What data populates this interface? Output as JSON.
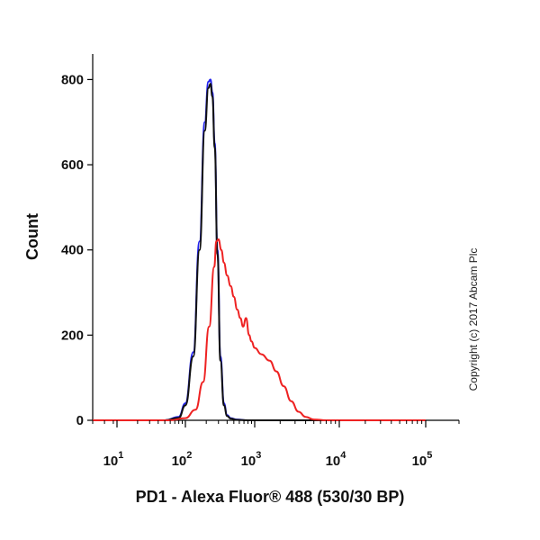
{
  "chart_data": {
    "type": "line",
    "title": "",
    "xlabel": "PD1 - Alexa Fluor® 488 (530/30 BP)",
    "ylabel": "Count",
    "x_scale": "log",
    "xlim": [
      10,
      100000
    ],
    "ylim": [
      0,
      860
    ],
    "y_ticks": [
      0,
      200,
      400,
      600,
      800
    ],
    "x_ticks": [
      {
        "value": 10,
        "base": "10",
        "exp": "1"
      },
      {
        "value": 100,
        "base": "10",
        "exp": "2"
      },
      {
        "value": 1000,
        "base": "10",
        "exp": "3"
      },
      {
        "value": 10000,
        "base": "10",
        "exp": "4"
      },
      {
        "value": 100000,
        "base": "10",
        "exp": "5"
      }
    ],
    "grid": false,
    "annotation": "Copyright (c) 2017 Abcam Plc",
    "series": [
      {
        "color": "#2222ee",
        "x": [
          5,
          50,
          80,
          100,
          130,
          160,
          190,
          215,
          230,
          245,
          265,
          290,
          320,
          360,
          400,
          450,
          550,
          800,
          1500,
          5000,
          100000
        ],
        "y": [
          0,
          0,
          8,
          40,
          160,
          420,
          700,
          795,
          800,
          770,
          650,
          400,
          150,
          40,
          12,
          5,
          2,
          0,
          0,
          0,
          0
        ]
      },
      {
        "color": "#111111",
        "x": [
          5,
          50,
          80,
          100,
          130,
          160,
          190,
          215,
          230,
          245,
          265,
          290,
          320,
          360,
          400,
          450,
          550,
          800,
          1500,
          5000,
          100000
        ],
        "y": [
          0,
          0,
          6,
          35,
          150,
          400,
          680,
          780,
          790,
          760,
          640,
          390,
          140,
          35,
          10,
          4,
          1,
          0,
          0,
          0,
          0
        ]
      },
      {
        "color": "#ee2222",
        "x": [
          5,
          60,
          100,
          140,
          180,
          220,
          260,
          280,
          300,
          330,
          360,
          400,
          450,
          500,
          560,
          620,
          680,
          750,
          830,
          900,
          1000,
          1200,
          1500,
          1800,
          2200,
          2700,
          3300,
          4000,
          5000,
          7000,
          100000
        ],
        "y": [
          0,
          0,
          5,
          25,
          90,
          220,
          360,
          420,
          425,
          400,
          370,
          340,
          315,
          290,
          260,
          240,
          220,
          240,
          200,
          185,
          170,
          155,
          140,
          115,
          80,
          45,
          20,
          8,
          2,
          0,
          0
        ]
      }
    ]
  }
}
